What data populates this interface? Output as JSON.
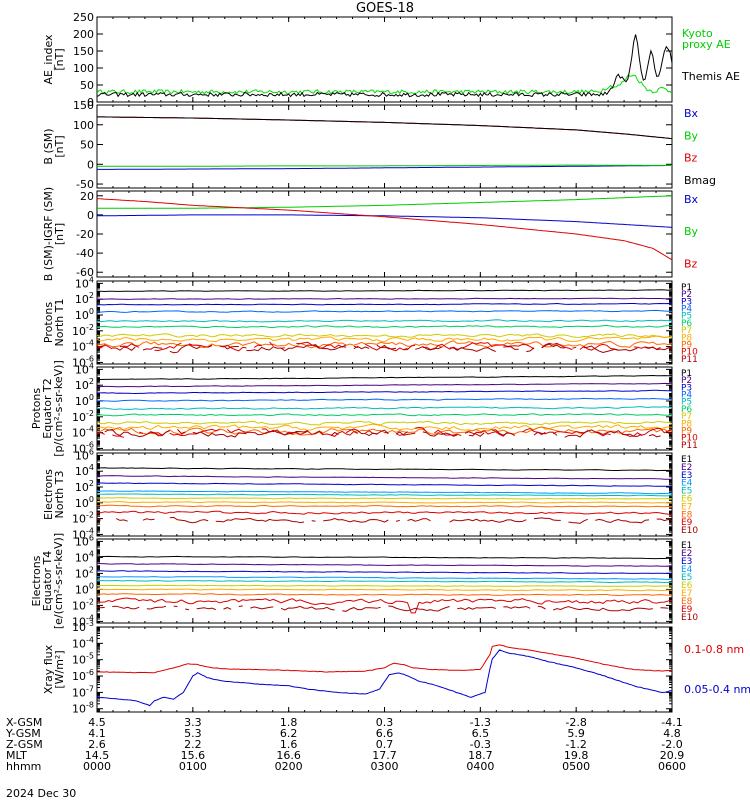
{
  "figure": {
    "title": "GOES-18",
    "date": "2024 Dec 30"
  },
  "chart_data": [
    {
      "type": "line",
      "panel": "ae",
      "ylabel": [
        "AE_index",
        "[nT]"
      ],
      "ylim": [
        0,
        250
      ],
      "yticks": [
        0,
        50,
        100,
        150,
        200,
        250
      ],
      "ytick_labels": [
        "0",
        "50",
        "100",
        "150",
        "200",
        "250"
      ],
      "log": false,
      "legend": [
        {
          "text": "Kyoto",
          "color": "#00cc00"
        },
        {
          "text": "proxy AE",
          "color": "#00cc00"
        },
        {
          "text": "Themis AE",
          "color": "#000000"
        }
      ],
      "series": [
        {
          "color": "#00dd00",
          "baseline": 30,
          "noise": 6,
          "bumps": [
            {
              "x": 5.58,
              "w": 0.12,
              "a": 50
            },
            {
              "x": 5.35,
              "w": 0.08,
              "a": 15
            },
            {
              "x": 5.9,
              "w": 0.06,
              "a": 10
            }
          ]
        },
        {
          "color": "#000000",
          "baseline": 22,
          "noise": 6,
          "bumps": [
            {
              "x": 5.45,
              "w": 0.08,
              "a": 55
            },
            {
              "x": 5.62,
              "w": 0.06,
              "a": 170
            },
            {
              "x": 5.78,
              "w": 0.05,
              "a": 125
            },
            {
              "x": 5.95,
              "w": 0.08,
              "a": 140
            }
          ]
        }
      ]
    },
    {
      "type": "line",
      "panel": "bfield",
      "ylabel": [
        "B (SM)",
        "[nT]"
      ],
      "ylim": [
        -60,
        150
      ],
      "yticks": [
        -50,
        0,
        50,
        100,
        150
      ],
      "ytick_labels": [
        "-50",
        "0",
        "50",
        "100",
        "150"
      ],
      "log": false,
      "legend": [
        {
          "text": "Bx",
          "color": "#0000cc"
        },
        {
          "text": "By",
          "color": "#00cc00"
        },
        {
          "text": "Bz",
          "color": "#dd0000"
        },
        {
          "text": "Bmag",
          "color": "#000000"
        }
      ],
      "series": [
        {
          "color": "#0000cc",
          "x": [
            0,
            1,
            2,
            3,
            4,
            5,
            6
          ],
          "y": [
            -13,
            -12,
            -11,
            -9,
            -7,
            -5,
            -3
          ]
        },
        {
          "color": "#00cc00",
          "x": [
            0,
            1,
            2,
            3,
            4,
            5,
            6
          ],
          "y": [
            -5,
            -5,
            -4,
            -4,
            -3,
            -2,
            -3
          ]
        },
        {
          "color": "#dd0000",
          "x": [
            0,
            1,
            2,
            3,
            4,
            5,
            5.5,
            6
          ],
          "y": [
            120,
            117,
            112,
            106,
            98,
            87,
            77,
            65
          ]
        },
        {
          "color": "#000000",
          "x": [
            0,
            1,
            2,
            3,
            4,
            5,
            5.5,
            6
          ],
          "y": [
            120,
            117,
            112,
            106,
            98,
            87,
            77,
            65
          ]
        }
      ]
    },
    {
      "type": "line",
      "panel": "bigrf",
      "ylabel": [
        "B (SM)-IGRF (SM)",
        "[nT]"
      ],
      "ylim": [
        -65,
        25
      ],
      "yticks": [
        -60,
        -40,
        -20,
        0,
        20
      ],
      "ytick_labels": [
        "-60",
        "-40",
        "-20",
        "0",
        "20"
      ],
      "log": false,
      "legend": [
        {
          "text": "Bx",
          "color": "#0000cc"
        },
        {
          "text": "By",
          "color": "#00cc00"
        },
        {
          "text": "Bz",
          "color": "#dd0000"
        }
      ],
      "series": [
        {
          "color": "#0000cc",
          "x": [
            0,
            1,
            2,
            3,
            4,
            5,
            6
          ],
          "y": [
            -1,
            0,
            0,
            -1,
            -3,
            -7,
            -13
          ]
        },
        {
          "color": "#00cc00",
          "x": [
            0,
            1,
            2,
            3,
            4,
            5,
            6
          ],
          "y": [
            7,
            7,
            8,
            10,
            13,
            16,
            20
          ]
        },
        {
          "color": "#dd0000",
          "x": [
            0,
            0.5,
            1,
            2,
            3,
            4,
            5,
            5.5,
            5.8,
            6
          ],
          "y": [
            17,
            14,
            10,
            5,
            -2,
            -10,
            -20,
            -27,
            -35,
            -47
          ]
        }
      ]
    },
    {
      "type": "line",
      "panel": "p1",
      "ylabel": [
        "Protons",
        "North T1"
      ],
      "ylim_log": [
        -6.2,
        4.3
      ],
      "yticks_exp": [
        -6,
        -4,
        -2,
        0,
        2,
        4
      ],
      "log": true,
      "legend": [
        {
          "text": "P1",
          "color": "#000000"
        },
        {
          "text": "P2",
          "color": "#4b0082"
        },
        {
          "text": "P3",
          "color": "#0000cc"
        },
        {
          "text": "P4",
          "color": "#0066ff"
        },
        {
          "text": "P5",
          "color": "#00bbbb"
        },
        {
          "text": "P6",
          "color": "#00cc66"
        },
        {
          "text": "P7",
          "color": "#cccc00"
        },
        {
          "text": "P8",
          "color": "#ffaa00"
        },
        {
          "text": "P9",
          "color": "#ff6600"
        },
        {
          "text": "P10",
          "color": "#dd0000"
        },
        {
          "text": "P11",
          "color": "#aa0000"
        }
      ],
      "series": [
        {
          "color": "#000000",
          "level": 3.0,
          "noise": 0.03,
          "trend": 0.15
        },
        {
          "color": "#4b0082",
          "level": 2.0,
          "noise": 0.03,
          "trend": 0.1
        },
        {
          "color": "#0000cc",
          "level": 1.3,
          "noise": 0.04,
          "trend": 0.1
        },
        {
          "color": "#0066ff",
          "level": 0.4,
          "noise": 0.05,
          "trend": 0.1
        },
        {
          "color": "#00bbbb",
          "level": -0.8,
          "noise": 0.07,
          "trend": 0.1
        },
        {
          "color": "#00cc66",
          "level": -1.5,
          "noise": 0.08,
          "trend": 0.05
        },
        {
          "color": "#cccc00",
          "level": -2.6,
          "noise": 0.15,
          "trend": 0.0
        },
        {
          "color": "#ffaa00",
          "level": -3.1,
          "noise": 0.22,
          "trend": 0.0
        },
        {
          "color": "#ff6600",
          "level": -3.7,
          "noise": 0.28,
          "trend": 0.0
        },
        {
          "color": "#dd0000",
          "level": -4.0,
          "noise": 0.35,
          "trend": 0.0,
          "gaps": true
        },
        {
          "color": "#aa0000",
          "level": -4.2,
          "noise": 0.35,
          "trend": 0.0,
          "gaps": true
        }
      ]
    },
    {
      "type": "line",
      "panel": "p2",
      "ylabel": [
        "Protons",
        "Equator T2",
        "[p/(cm²-s-sr-keV)]"
      ],
      "ylim_log": [
        -6.2,
        4.3
      ],
      "yticks_exp": [
        -6,
        -4,
        -2,
        0,
        2,
        4
      ],
      "log": true,
      "legend": [
        {
          "text": "P1",
          "color": "#000000"
        },
        {
          "text": "P2",
          "color": "#4b0082"
        },
        {
          "text": "P3",
          "color": "#0000cc"
        },
        {
          "text": "P4",
          "color": "#0066ff"
        },
        {
          "text": "P5",
          "color": "#00bbbb"
        },
        {
          "text": "P6",
          "color": "#00cc66"
        },
        {
          "text": "P7",
          "color": "#cccc00"
        },
        {
          "text": "P8",
          "color": "#ffaa00"
        },
        {
          "text": "P9",
          "color": "#ff6600"
        },
        {
          "text": "P10",
          "color": "#dd0000"
        },
        {
          "text": "P11",
          "color": "#aa0000"
        }
      ],
      "series": [
        {
          "color": "#000000",
          "level": 2.7,
          "noise": 0.03,
          "trend": 0.5
        },
        {
          "color": "#4b0082",
          "level": 1.8,
          "noise": 0.03,
          "trend": 0.4
        },
        {
          "color": "#0000cc",
          "level": 1.0,
          "noise": 0.04,
          "trend": 0.3
        },
        {
          "color": "#0066ff",
          "level": 0.0,
          "noise": 0.05,
          "trend": 0.3
        },
        {
          "color": "#00bbbb",
          "level": -1.0,
          "noise": 0.07,
          "trend": 0.2
        },
        {
          "color": "#00cc66",
          "level": -1.8,
          "noise": 0.08,
          "trend": 0.1
        },
        {
          "color": "#cccc00",
          "level": -2.8,
          "noise": 0.15,
          "trend": 0.0
        },
        {
          "color": "#ffaa00",
          "level": -3.4,
          "noise": 0.25,
          "trend": 0.0
        },
        {
          "color": "#ff6600",
          "level": -3.8,
          "noise": 0.3,
          "trend": 0.0
        },
        {
          "color": "#dd0000",
          "level": -4.0,
          "noise": 0.35,
          "trend": 0.0,
          "gaps": true
        },
        {
          "color": "#aa0000",
          "level": -4.1,
          "noise": 0.35,
          "trend": 0.0,
          "gaps": true
        }
      ]
    },
    {
      "type": "line",
      "panel": "e1",
      "ylabel": [
        "Electrons",
        "North T3"
      ],
      "ylim_log": [
        -4.2,
        6.3
      ],
      "yticks_exp": [
        -4,
        -2,
        0,
        2,
        4,
        6
      ],
      "log": true,
      "legend": [
        {
          "text": "E1",
          "color": "#000000"
        },
        {
          "text": "E2",
          "color": "#4b0082"
        },
        {
          "text": "E3",
          "color": "#0000cc"
        },
        {
          "text": "E4",
          "color": "#0099ff"
        },
        {
          "text": "E5",
          "color": "#00bbbb"
        },
        {
          "text": "E6",
          "color": "#cccc00"
        },
        {
          "text": "E7",
          "color": "#ffaa00"
        },
        {
          "text": "E8",
          "color": "#ff6600"
        },
        {
          "text": "E9",
          "color": "#dd0000"
        },
        {
          "text": "E10",
          "color": "#aa0000"
        }
      ],
      "series": [
        {
          "color": "#000000",
          "level": 4.4,
          "noise": 0.03,
          "trend": -0.3
        },
        {
          "color": "#4b0082",
          "level": 3.4,
          "noise": 0.03,
          "trend": -0.4
        },
        {
          "color": "#0000cc",
          "level": 2.5,
          "noise": 0.03,
          "trend": -0.4
        },
        {
          "color": "#0099ff",
          "level": 1.5,
          "noise": 0.03,
          "trend": -0.3
        },
        {
          "color": "#00bbbb",
          "level": 1.1,
          "noise": 0.03,
          "trend": -0.2
        },
        {
          "color": "#cccc00",
          "level": 0.6,
          "noise": 0.03,
          "trend": -0.1
        },
        {
          "color": "#ffaa00",
          "level": 0.1,
          "noise": 0.04,
          "trend": -0.1
        },
        {
          "color": "#ff6600",
          "level": -0.4,
          "noise": 0.05,
          "trend": -0.05
        },
        {
          "color": "#dd0000",
          "level": -1.2,
          "noise": 0.12,
          "trend": -0.1
        },
        {
          "color": "#aa0000",
          "level": -2.2,
          "noise": 0.2,
          "trend": 0.0,
          "gaps": true
        }
      ]
    },
    {
      "type": "line",
      "panel": "e2",
      "ylabel": [
        "Electrons",
        "Equator T4",
        "[e/(cm²-s-sr-keV)]"
      ],
      "ylim_log": [
        -4.2,
        6.3
      ],
      "yticks_exp": [
        -4,
        -2,
        0,
        2,
        4,
        6
      ],
      "log": true,
      "legend": [
        {
          "text": "E1",
          "color": "#000000"
        },
        {
          "text": "E2",
          "color": "#4b0082"
        },
        {
          "text": "E3",
          "color": "#0000cc"
        },
        {
          "text": "E4",
          "color": "#0099ff"
        },
        {
          "text": "E5",
          "color": "#00bbbb"
        },
        {
          "text": "E6",
          "color": "#cccc00"
        },
        {
          "text": "E7",
          "color": "#ffaa00"
        },
        {
          "text": "E8",
          "color": "#ff6600"
        },
        {
          "text": "E9",
          "color": "#dd0000"
        },
        {
          "text": "E10",
          "color": "#aa0000"
        }
      ],
      "series": [
        {
          "color": "#000000",
          "level": 4.1,
          "noise": 0.03,
          "trend": -0.2
        },
        {
          "color": "#4b0082",
          "level": 3.2,
          "noise": 0.03,
          "trend": -0.3
        },
        {
          "color": "#0000cc",
          "level": 2.3,
          "noise": 0.03,
          "trend": -0.3
        },
        {
          "color": "#0099ff",
          "level": 1.6,
          "noise": 0.03,
          "trend": -0.3
        },
        {
          "color": "#00bbbb",
          "level": 1.1,
          "noise": 0.03,
          "trend": -0.2
        },
        {
          "color": "#cccc00",
          "level": 0.5,
          "noise": 0.03,
          "trend": -0.1
        },
        {
          "color": "#ffaa00",
          "level": 0.0,
          "noise": 0.04,
          "trend": -0.1
        },
        {
          "color": "#ff6600",
          "level": -0.6,
          "noise": 0.05,
          "trend": -0.1
        },
        {
          "color": "#dd0000",
          "level": -1.5,
          "noise": 0.25,
          "trend": 0.0,
          "dip": {
            "x": 3.3,
            "y": -3.9
          }
        },
        {
          "color": "#aa0000",
          "level": -2.4,
          "noise": 0.2,
          "trend": 0.0,
          "gaps": true
        }
      ]
    },
    {
      "type": "line",
      "panel": "xray",
      "ylabel": [
        "Xray flux",
        "[W/m²]"
      ],
      "ylim_log": [
        -8.2,
        -3
      ],
      "yticks_exp": [
        -8,
        -7,
        -6,
        -5,
        -4,
        -3
      ],
      "log": true,
      "legend": [
        {
          "text": "0.1-0.8 nm",
          "color": "#dd0000"
        },
        {
          "text": "0.05-0.4 nm",
          "color": "#0000cc"
        }
      ],
      "series": [
        {
          "color": "#dd0000",
          "x": [
            0,
            0.6,
            0.8,
            0.95,
            1.05,
            1.15,
            1.3,
            1.6,
            2.0,
            2.4,
            2.8,
            3.0,
            3.1,
            3.2,
            3.3,
            3.5,
            3.8,
            4.0,
            4.1,
            4.12,
            4.2,
            4.35,
            4.5,
            4.7,
            5.0,
            5.3,
            5.6,
            5.9,
            6.0
          ],
          "y": [
            -5.75,
            -5.8,
            -5.5,
            -5.25,
            -5.3,
            -5.45,
            -5.55,
            -5.6,
            -5.65,
            -5.75,
            -5.7,
            -5.5,
            -5.2,
            -5.3,
            -5.5,
            -5.6,
            -5.65,
            -5.6,
            -4.7,
            -4.2,
            -4.1,
            -4.3,
            -4.4,
            -4.6,
            -4.9,
            -5.3,
            -5.6,
            -5.7,
            -5.65
          ]
        },
        {
          "color": "#0000cc",
          "x": [
            0,
            0.4,
            0.55,
            0.6,
            0.7,
            0.8,
            0.9,
            1.0,
            1.05,
            1.15,
            1.3,
            1.5,
            1.7,
            2.0,
            2.2,
            2.5,
            2.8,
            2.95,
            3.05,
            3.15,
            3.25,
            3.35,
            3.5,
            3.7,
            3.9,
            4.05,
            4.12,
            4.2,
            4.3,
            4.5,
            4.7,
            5.0,
            5.3,
            5.6,
            5.9,
            6.0
          ],
          "y": [
            -7.3,
            -7.5,
            -7.8,
            -7.5,
            -7.3,
            -7.4,
            -7.0,
            -6.0,
            -5.8,
            -6.1,
            -6.3,
            -6.4,
            -6.5,
            -6.6,
            -6.8,
            -7.0,
            -7.1,
            -6.8,
            -5.9,
            -5.8,
            -6.0,
            -6.3,
            -6.5,
            -6.9,
            -7.3,
            -7.0,
            -5.0,
            -4.4,
            -4.6,
            -4.8,
            -5.1,
            -5.5,
            -6.0,
            -6.6,
            -7.0,
            -6.9
          ]
        }
      ]
    }
  ],
  "x_axis": {
    "range": [
      0,
      6
    ],
    "ticks": [
      0,
      1,
      2,
      3,
      4,
      5,
      6
    ],
    "rows": [
      {
        "label": "X-GSM",
        "values": [
          "4.5",
          "3.3",
          "1.8",
          "0.3",
          "-1.3",
          "-2.8",
          "-4.1"
        ]
      },
      {
        "label": "Y-GSM",
        "values": [
          "4.1",
          "5.3",
          "6.2",
          "6.6",
          "6.5",
          "5.9",
          "4.8"
        ]
      },
      {
        "label": "Z-GSM",
        "values": [
          "2.6",
          "2.2",
          "1.6",
          "0.7",
          "-0.3",
          "-1.2",
          "-2.0"
        ]
      },
      {
        "label": "MLT",
        "values": [
          "14.5",
          "15.6",
          "16.6",
          "17.7",
          "18.7",
          "19.8",
          "20.9"
        ]
      },
      {
        "label": "hhmm",
        "values": [
          "0000",
          "0100",
          "0200",
          "0300",
          "0400",
          "0500",
          "0600"
        ]
      }
    ]
  }
}
